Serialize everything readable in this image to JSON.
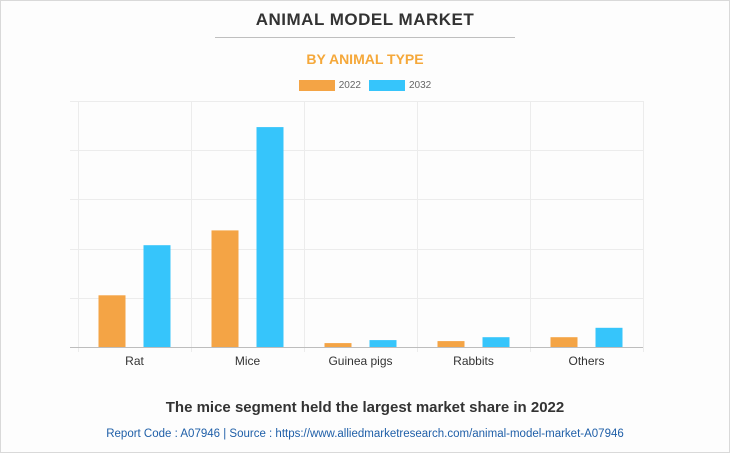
{
  "chart_data": {
    "type": "bar",
    "title": "ANIMAL MODEL MARKET",
    "subtitle": "BY ANIMAL TYPE",
    "categories": [
      "Rat",
      "Mice",
      "Guinea pigs",
      "Rabbits",
      "Others"
    ],
    "series": [
      {
        "name": "2022",
        "color": "#f4a445",
        "values": [
          1.05,
          2.37,
          0.08,
          0.12,
          0.2
        ]
      },
      {
        "name": "2032",
        "color": "#36c5fb",
        "values": [
          2.07,
          4.47,
          0.14,
          0.2,
          0.39
        ]
      }
    ],
    "ylim": [
      0,
      5
    ],
    "grid": true,
    "legend": "top-center"
  },
  "caption": "The mice segment held the largest market share in 2022",
  "source": "Report Code : A07946  |  Source : https://www.alliedmarketresearch.com/animal-model-market-A07946"
}
